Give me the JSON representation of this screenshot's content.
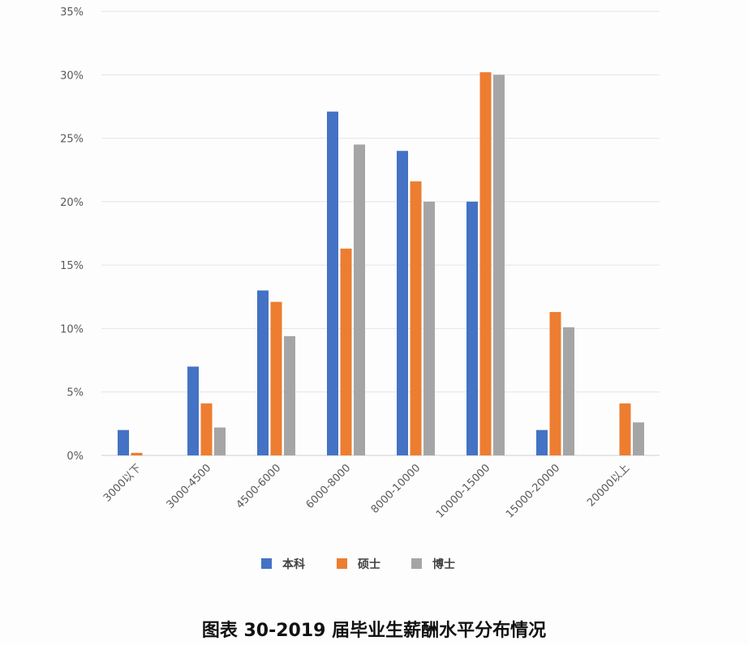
{
  "chart_data": {
    "type": "bar",
    "title": "图表 30-2019 届毕业生薪酬水平分布情况",
    "xlabel": "",
    "ylabel": "",
    "categories": [
      "3000以下",
      "3000-4500",
      "4500-6000",
      "6000-8000",
      "8000-10000",
      "10000-15000",
      "15000-20000",
      "20000以上"
    ],
    "series": [
      {
        "name": "本科",
        "color": "#4472C4",
        "values": [
          2.0,
          7.0,
          13.0,
          27.1,
          24.0,
          20.0,
          2.0,
          0.0
        ]
      },
      {
        "name": "硕士",
        "color": "#ED7D31",
        "values": [
          0.2,
          4.1,
          12.1,
          16.3,
          21.6,
          30.2,
          11.3,
          4.1
        ]
      },
      {
        "name": "博士",
        "color": "#A5A5A5",
        "values": [
          0.0,
          2.2,
          9.4,
          24.5,
          20.0,
          30.0,
          10.1,
          2.6
        ]
      }
    ],
    "ylim": [
      0,
      35
    ],
    "yticks": [
      "0%",
      "5%",
      "10%",
      "15%",
      "20%",
      "25%",
      "30%",
      "35%"
    ],
    "ytick_values": [
      0,
      5,
      10,
      15,
      20,
      25,
      30,
      35
    ],
    "grid": true,
    "legend_position": "bottom"
  },
  "title": "图表 30-2019 届毕业生薪酬水平分布情况"
}
